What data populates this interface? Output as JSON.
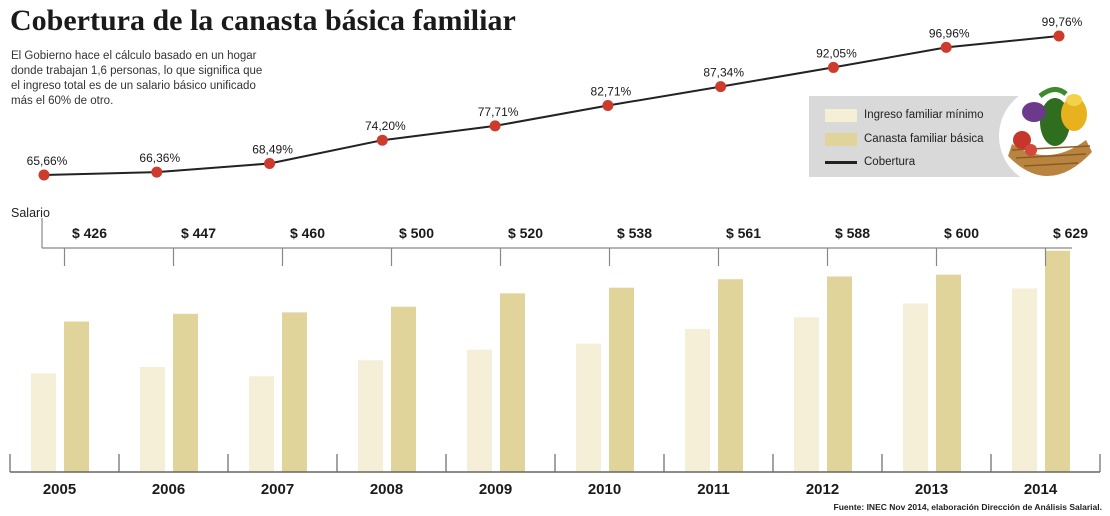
{
  "title": "Cobertura de la canasta básica familiar",
  "intro": "El Gobierno hace el cálculo basado en un hogar donde trabajan 1,6 personas, lo que significa que el ingreso total  es de un salario básico unificado más el 60% de otro.",
  "salario_label": "Salario",
  "source": "Fuente: INEC Nov 2014, elaboración Dirección de Análisis Salarial.",
  "colors": {
    "ingreso": "#f5efd8",
    "canasta": "#e0d49a",
    "line": "#222222",
    "marker": "#cc3b2c"
  },
  "legend": {
    "ingreso": "Ingreso familiar mínimo",
    "canasta": "Canasta familiar básica",
    "cobertura": "Cobertura"
  },
  "chart_data": {
    "type": "bar",
    "categories": [
      "2005",
      "2006",
      "2007",
      "2008",
      "2009",
      "2010",
      "2011",
      "2012",
      "2013",
      "2014"
    ],
    "salario_labels": [
      "$ 426",
      "$ 447",
      "$ 460",
      "$ 500",
      "$ 520",
      "$ 538",
      "$ 561",
      "$ 588",
      "$ 600",
      "$ 629"
    ],
    "cobertura_labels": [
      "65,66%",
      "66,36%",
      "68,49%",
      "74,20%",
      "77,71%",
      "82,71%",
      "87,34%",
      "92,05%",
      "96,96%",
      "99,76%"
    ],
    "cobertura": [
      65.66,
      66.36,
      68.49,
      74.2,
      77.71,
      82.71,
      87.34,
      92.05,
      96.96,
      99.76
    ],
    "series": [
      {
        "name": "Ingreso familiar mínimo",
        "values": [
          280,
          298,
          272,
          317,
          347,
          364,
          406,
          439,
          478,
          521
        ]
      },
      {
        "name": "Canasta familiar básica",
        "values": [
          427,
          449,
          453,
          469,
          507,
          523,
          547,
          555,
          560,
          628
        ]
      }
    ],
    "ylim": [
      0,
      630
    ],
    "grid": false,
    "legend_position": "right"
  }
}
